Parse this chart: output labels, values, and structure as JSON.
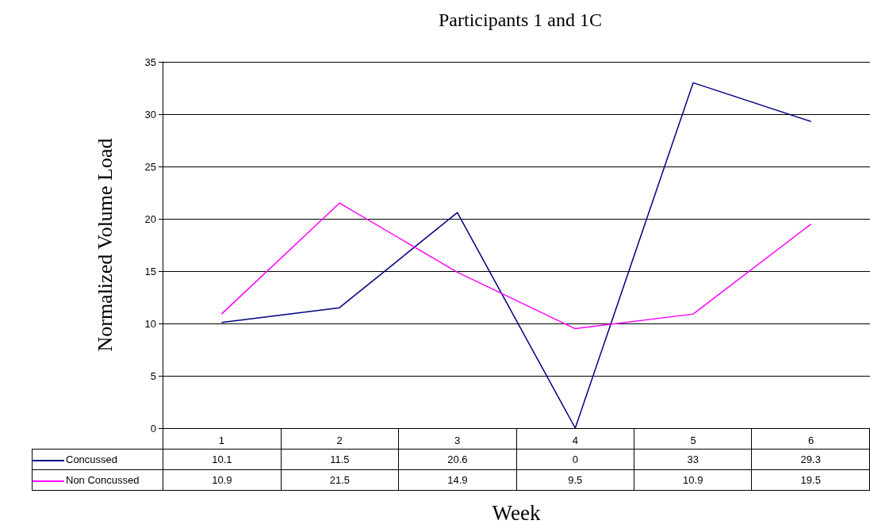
{
  "chart_data": {
    "type": "line",
    "title": "Participants 1 and 1C",
    "xlabel": "Week",
    "ylabel": "Normalized Volume Load",
    "categories": [
      "1",
      "2",
      "3",
      "4",
      "5",
      "6"
    ],
    "series": [
      {
        "name": "Concussed",
        "color": "#000080",
        "values": [
          10.1,
          11.5,
          20.6,
          0,
          33,
          29.3
        ]
      },
      {
        "name": "Non Concussed",
        "color": "#ff00ff",
        "values": [
          10.9,
          21.5,
          14.9,
          9.5,
          10.9,
          19.5
        ]
      }
    ],
    "ylim": [
      0,
      35
    ],
    "yticks": [
      0,
      5,
      10,
      15,
      20,
      25,
      30,
      35
    ],
    "grid": "y",
    "marker": "none",
    "line_style": "solid",
    "legend": "bottom left",
    "data_labels": true
  }
}
